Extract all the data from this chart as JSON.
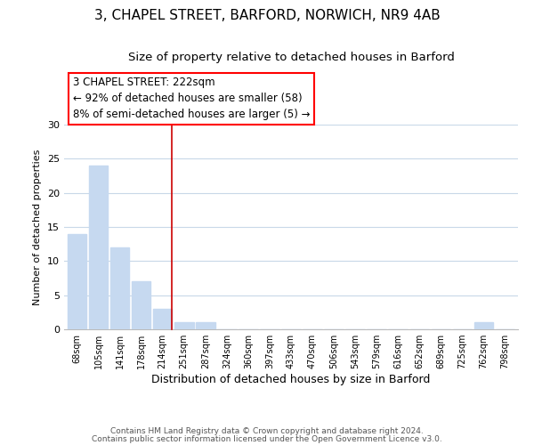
{
  "title1": "3, CHAPEL STREET, BARFORD, NORWICH, NR9 4AB",
  "title2": "Size of property relative to detached houses in Barford",
  "xlabel": "Distribution of detached houses by size in Barford",
  "ylabel": "Number of detached properties",
  "bar_labels": [
    "68sqm",
    "105sqm",
    "141sqm",
    "178sqm",
    "214sqm",
    "251sqm",
    "287sqm",
    "324sqm",
    "360sqm",
    "397sqm",
    "433sqm",
    "470sqm",
    "506sqm",
    "543sqm",
    "579sqm",
    "616sqm",
    "652sqm",
    "689sqm",
    "725sqm",
    "762sqm",
    "798sqm"
  ],
  "bar_values": [
    14,
    24,
    12,
    7,
    3,
    1,
    1,
    0,
    0,
    0,
    0,
    0,
    0,
    0,
    0,
    0,
    0,
    0,
    0,
    1,
    0
  ],
  "bar_color": "#c6d9f0",
  "annotation_box_text": "3 CHAPEL STREET: 222sqm\n← 92% of detached houses are smaller (58)\n8% of semi-detached houses are larger (5) →",
  "ylim": [
    0,
    30
  ],
  "yticks": [
    0,
    5,
    10,
    15,
    20,
    25,
    30
  ],
  "footer1": "Contains HM Land Registry data © Crown copyright and database right 2024.",
  "footer2": "Contains public sector information licensed under the Open Government Licence v3.0.",
  "bg_color": "#ffffff",
  "grid_color": "#c8d8e8",
  "title1_fontsize": 11,
  "title2_fontsize": 9.5,
  "annot_fontsize": 8.5,
  "footer_fontsize": 6.5,
  "red_line_x": 4.45
}
